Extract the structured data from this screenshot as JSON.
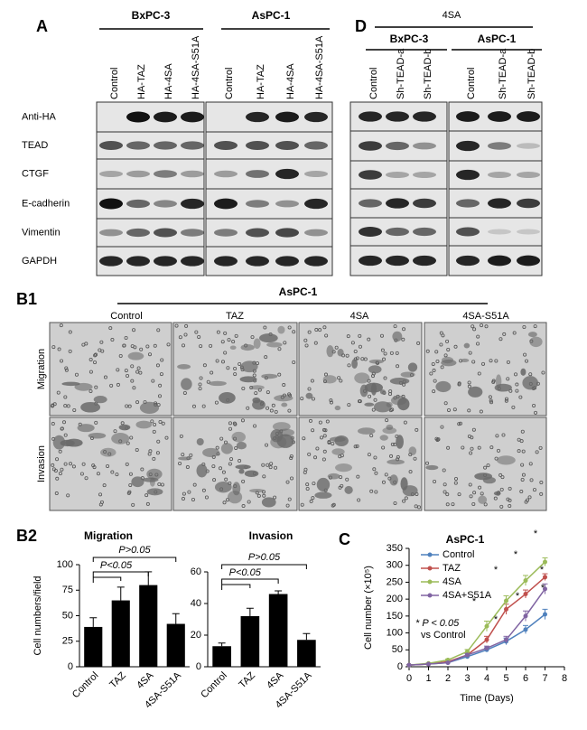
{
  "panel_a": {
    "label": "A",
    "groups": [
      "BxPC-3",
      "AsPC-1"
    ],
    "lanes": [
      "Control",
      "HA-TAZ",
      "HA-4SA",
      "HA-4SA-S51A",
      "Control",
      "HA-TAZ",
      "HA-4SA",
      "HA-4SA-S51A"
    ],
    "rows": [
      "Anti-HA",
      "TEAD",
      "CTGF",
      "E-cadherin",
      "Vimentin",
      "GAPDH"
    ]
  },
  "panel_d": {
    "label": "D",
    "treatment": "4SA",
    "groups": [
      "BxPC-3",
      "AsPC-1"
    ],
    "lanes": [
      "Control",
      "Sh-TEAD-a",
      "Sh-TEAD-b",
      "Control",
      "Sh-TEAD-a",
      "Sh-TEAD-b"
    ]
  },
  "panel_b1": {
    "label": "B1",
    "cell_line": "AsPC-1",
    "columns": [
      "Control",
      "TAZ",
      "4SA",
      "4SA-S51A"
    ],
    "rows": [
      "Migration",
      "Invasion"
    ]
  },
  "panel_b2": {
    "label": "B2"
  },
  "panel_c": {
    "label": "C"
  },
  "chart_data": [
    {
      "type": "bar",
      "title": "Migration",
      "ylabel": "Cell numbers/field",
      "categories": [
        "Control",
        "TAZ",
        "4SA",
        "4SA-S51A"
      ],
      "values": [
        39,
        65,
        80,
        42
      ],
      "errors": [
        9,
        13,
        13,
        10
      ],
      "color": "#000000",
      "ylim": [
        0,
        100
      ],
      "yticks": [
        0,
        25,
        50,
        75,
        100
      ],
      "annotations": [
        "P>0.05",
        "P<0.05"
      ]
    },
    {
      "type": "bar",
      "title": "Invasion",
      "categories": [
        "Control",
        "TAZ",
        "4SA",
        "4SA-S51A"
      ],
      "values": [
        13,
        32,
        46,
        17
      ],
      "errors": [
        2,
        5,
        2,
        4
      ],
      "color": "#000000",
      "ylim": [
        0,
        60
      ],
      "yticks": [
        0,
        20,
        40,
        60
      ],
      "annotations": [
        "P>0.05",
        "P<0.05"
      ]
    },
    {
      "type": "line",
      "title": "AsPC-1",
      "xlabel": "Time (Days)",
      "ylabel": "Cell number (×10⁵)",
      "x": [
        0,
        1,
        2,
        3,
        4,
        5,
        6,
        7
      ],
      "xlim": [
        0,
        8
      ],
      "xticks": [
        0,
        1,
        2,
        3,
        4,
        5,
        6,
        7,
        8
      ],
      "ylim": [
        0,
        350
      ],
      "yticks": [
        0,
        50,
        100,
        150,
        200,
        250,
        300,
        350
      ],
      "legend": "top-left",
      "series": [
        {
          "name": "Control",
          "color": "#4f81bd",
          "values": [
            5,
            8,
            12,
            30,
            50,
            75,
            110,
            155
          ],
          "errors": [
            1,
            1,
            2,
            4,
            6,
            10,
            12,
            15
          ]
        },
        {
          "name": "TAZ",
          "color": "#c0504d",
          "values": [
            5,
            8,
            15,
            35,
            80,
            170,
            215,
            265
          ],
          "errors": [
            1,
            1,
            2,
            5,
            10,
            15,
            12,
            10
          ]
        },
        {
          "name": "4SA",
          "color": "#9bbb59",
          "values": [
            5,
            10,
            20,
            45,
            120,
            195,
            255,
            310
          ],
          "errors": [
            1,
            1,
            3,
            6,
            15,
            15,
            15,
            12
          ]
        },
        {
          "name": "4SA+S51A",
          "color": "#8064a2",
          "values": [
            5,
            8,
            12,
            35,
            55,
            80,
            150,
            230
          ],
          "errors": [
            1,
            1,
            2,
            4,
            6,
            10,
            15,
            15
          ]
        }
      ],
      "note": "* P < 0.05",
      "note2": "vs Control",
      "significance_marks": [
        "*",
        "*",
        "*",
        "*",
        "*",
        "*",
        "*",
        "*"
      ]
    }
  ]
}
